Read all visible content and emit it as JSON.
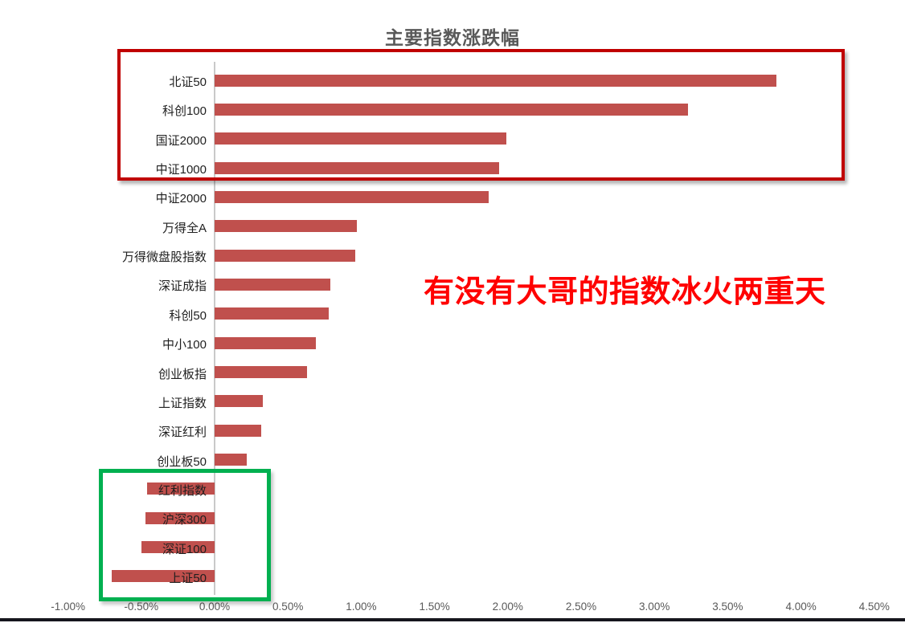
{
  "title": "主要指数涨跌幅",
  "annotation": "有没有大哥的指数冰火两重天",
  "colors": {
    "bar": "#c0504d",
    "highlight_red_box": "#c00000",
    "highlight_green_box": "#00b050",
    "annotation_text": "#ff0000",
    "title_text": "#595959",
    "tick_text": "#595959",
    "axis_line": "#c9c9c9"
  },
  "chart_data": {
    "type": "bar",
    "orientation": "horizontal",
    "title": "主要指数涨跌幅",
    "unit": "%",
    "xlim": [
      -1.0,
      4.5
    ],
    "grid": false,
    "legend": false,
    "categories": [
      "北证50",
      "科创100",
      "国证2000",
      "中证1000",
      "中证2000",
      "万得全A",
      "万得微盘股指数",
      "深证成指",
      "科创50",
      "中小100",
      "创业板指",
      "上证指数",
      "深证红利",
      "创业板50",
      "红利指数",
      "沪深300",
      "深证100",
      "上证50"
    ],
    "values": [
      3.83,
      3.23,
      1.99,
      1.94,
      1.87,
      0.97,
      0.96,
      0.79,
      0.78,
      0.69,
      0.63,
      0.33,
      0.32,
      0.22,
      -0.46,
      -0.47,
      -0.5,
      -0.7
    ],
    "x_ticks": [
      "-1.00%",
      "-0.50%",
      "0.00%",
      "0.50%",
      "1.00%",
      "1.50%",
      "2.00%",
      "2.50%",
      "3.00%",
      "3.50%",
      "4.00%",
      "4.50%"
    ],
    "x_tick_values": [
      -1.0,
      -0.5,
      0.0,
      0.5,
      1.0,
      1.5,
      2.0,
      2.5,
      3.0,
      3.5,
      4.0,
      4.5
    ],
    "highlights": [
      {
        "name": "top-gainers-box",
        "color": "#c00000",
        "categories": [
          "北证50",
          "科创100",
          "国证2000",
          "中证1000"
        ]
      },
      {
        "name": "bottom-decliners-box",
        "color": "#00b050",
        "categories": [
          "红利指数",
          "沪深300",
          "深证100",
          "上证50"
        ]
      }
    ]
  }
}
